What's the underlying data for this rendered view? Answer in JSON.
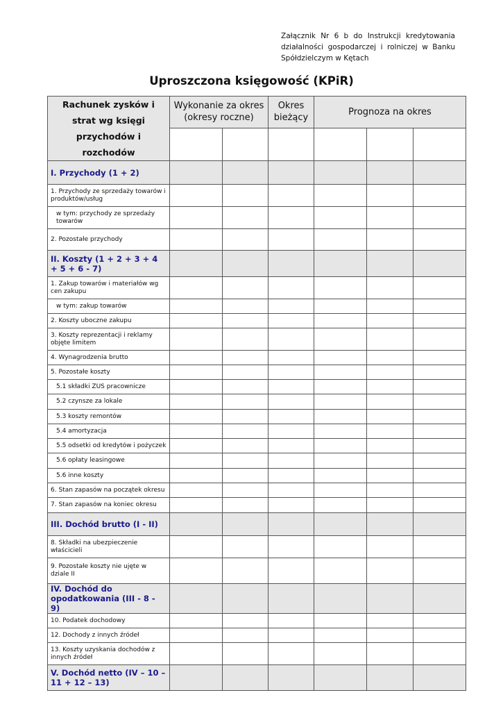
{
  "note": "Załącznik Nr 6 b do Instrukcji kredytowania działalności gospodarczej i rolniczej w Banku Spółdzielczym w Kętach",
  "title": "Uproszczona księgowość (KPiR)",
  "header": {
    "col1": "Rachunek zysków i strat wg księgi przychodów i rozchodów",
    "col2": "Wykonanie za okres (okresy roczne)",
    "col3": "Okres bieżący",
    "col4": "Prognoza na okres"
  },
  "rows": [
    {
      "label": "I. Przychody (1 + 2)",
      "type": "section"
    },
    {
      "label": "1. Przychody ze sprzedaży towarów i produktów/usług",
      "type": "item"
    },
    {
      "label": "w tym: przychody ze sprzedaży towarów",
      "type": "sub"
    },
    {
      "label": "2. Pozostałe przychody",
      "type": "item"
    },
    {
      "label": "II. Koszty (1 + 2 + 3 + 4 + 5 + 6 - 7)",
      "type": "section"
    },
    {
      "label": "1. Zakup towarów i materiałów wg cen zakupu",
      "type": "item"
    },
    {
      "label": "w tym: zakup towarów",
      "type": "sub"
    },
    {
      "label": "2. Koszty uboczne zakupu",
      "type": "item"
    },
    {
      "label": "3. Koszty reprezentacji i reklamy objęte limitem",
      "type": "item"
    },
    {
      "label": "4. Wynagrodzenia brutto",
      "type": "item"
    },
    {
      "label": "5. Pozostałe koszty",
      "type": "item"
    },
    {
      "label": "5.1 składki ZUS pracownicze",
      "type": "sub"
    },
    {
      "label": "5.2 czynsze za lokale",
      "type": "sub"
    },
    {
      "label": "5.3 koszty remontów",
      "type": "sub"
    },
    {
      "label": "5.4 amortyzacja",
      "type": "sub"
    },
    {
      "label": "5.5 odsetki od kredytów i pożyczek",
      "type": "sub"
    },
    {
      "label": "5.6 opłaty leasingowe",
      "type": "sub"
    },
    {
      "label": "5.6 inne koszty",
      "type": "sub"
    },
    {
      "label": "6. Stan zapasów na początek okresu",
      "type": "item"
    },
    {
      "label": "7. Stan zapasów na koniec okresu",
      "type": "item"
    },
    {
      "label": "III. Dochód brutto (I - II)",
      "type": "section"
    },
    {
      "label": "8. Składki na ubezpieczenie właścicieli",
      "type": "item"
    },
    {
      "label": "9. Pozostałe koszty nie ujęte w dziale II",
      "type": "item"
    },
    {
      "label": "IV. Dochód do opodatkowania (III - 8 - 9)",
      "type": "section"
    },
    {
      "label": "10. Podatek dochodowy",
      "type": "item"
    },
    {
      "label": "12. Dochody z innych źródeł",
      "type": "item"
    },
    {
      "label": "13. Koszty uzyskania dochodów z innych źródeł",
      "type": "item"
    },
    {
      "label": "V. Dochód netto (IV – 10 – 11 + 12 – 13)",
      "type": "section"
    }
  ]
}
